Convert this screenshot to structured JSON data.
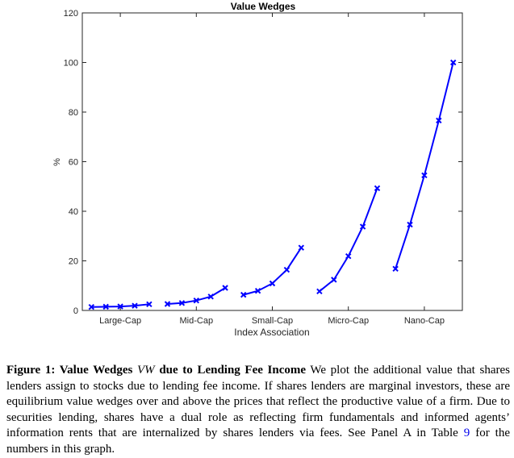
{
  "chart_data": {
    "type": "line",
    "title": "Value Wedges",
    "xlabel": "Index Association",
    "ylabel": "%",
    "ylim": [
      0,
      120
    ],
    "yticks": [
      0,
      20,
      40,
      60,
      80,
      100,
      120
    ],
    "categories": [
      "Large-Cap",
      "Mid-Cap",
      "Small-Cap",
      "Micro-Cap",
      "Nano-Cap"
    ],
    "marker": "x",
    "color": "#0000ff",
    "grid": false,
    "series": [
      {
        "category": "Large-Cap",
        "values": [
          1.4,
          1.5,
          1.6,
          1.9,
          2.5
        ]
      },
      {
        "category": "Mid-Cap",
        "values": [
          2.6,
          3.0,
          4.0,
          5.6,
          9.1
        ]
      },
      {
        "category": "Small-Cap",
        "values": [
          6.3,
          7.9,
          10.9,
          16.4,
          25.3
        ]
      },
      {
        "category": "Micro-Cap",
        "values": [
          7.7,
          12.4,
          21.9,
          33.8,
          49.3
        ]
      },
      {
        "category": "Nano-Cap",
        "values": [
          16.8,
          34.6,
          54.5,
          76.6,
          100.0
        ]
      }
    ]
  },
  "caption": {
    "label": "Figure 1: Value Wedges ",
    "symbol": "VW",
    "label_rest": " due to Lending Fee Income",
    "body_1": "We plot the additional value that shares lenders assign to stocks due to lending fee income. If shares lenders are marginal investors, these are equilibrium value wedges over and above the prices that reflect the productive value of a firm. Due to securities lending, shares have a dual role as reflecting firm fundamentals and informed agents’ information rents that are internalized by shares lenders via fees. See Panel A in Table ",
    "table_ref": "9",
    "body_2": " for the numbers in this graph."
  }
}
